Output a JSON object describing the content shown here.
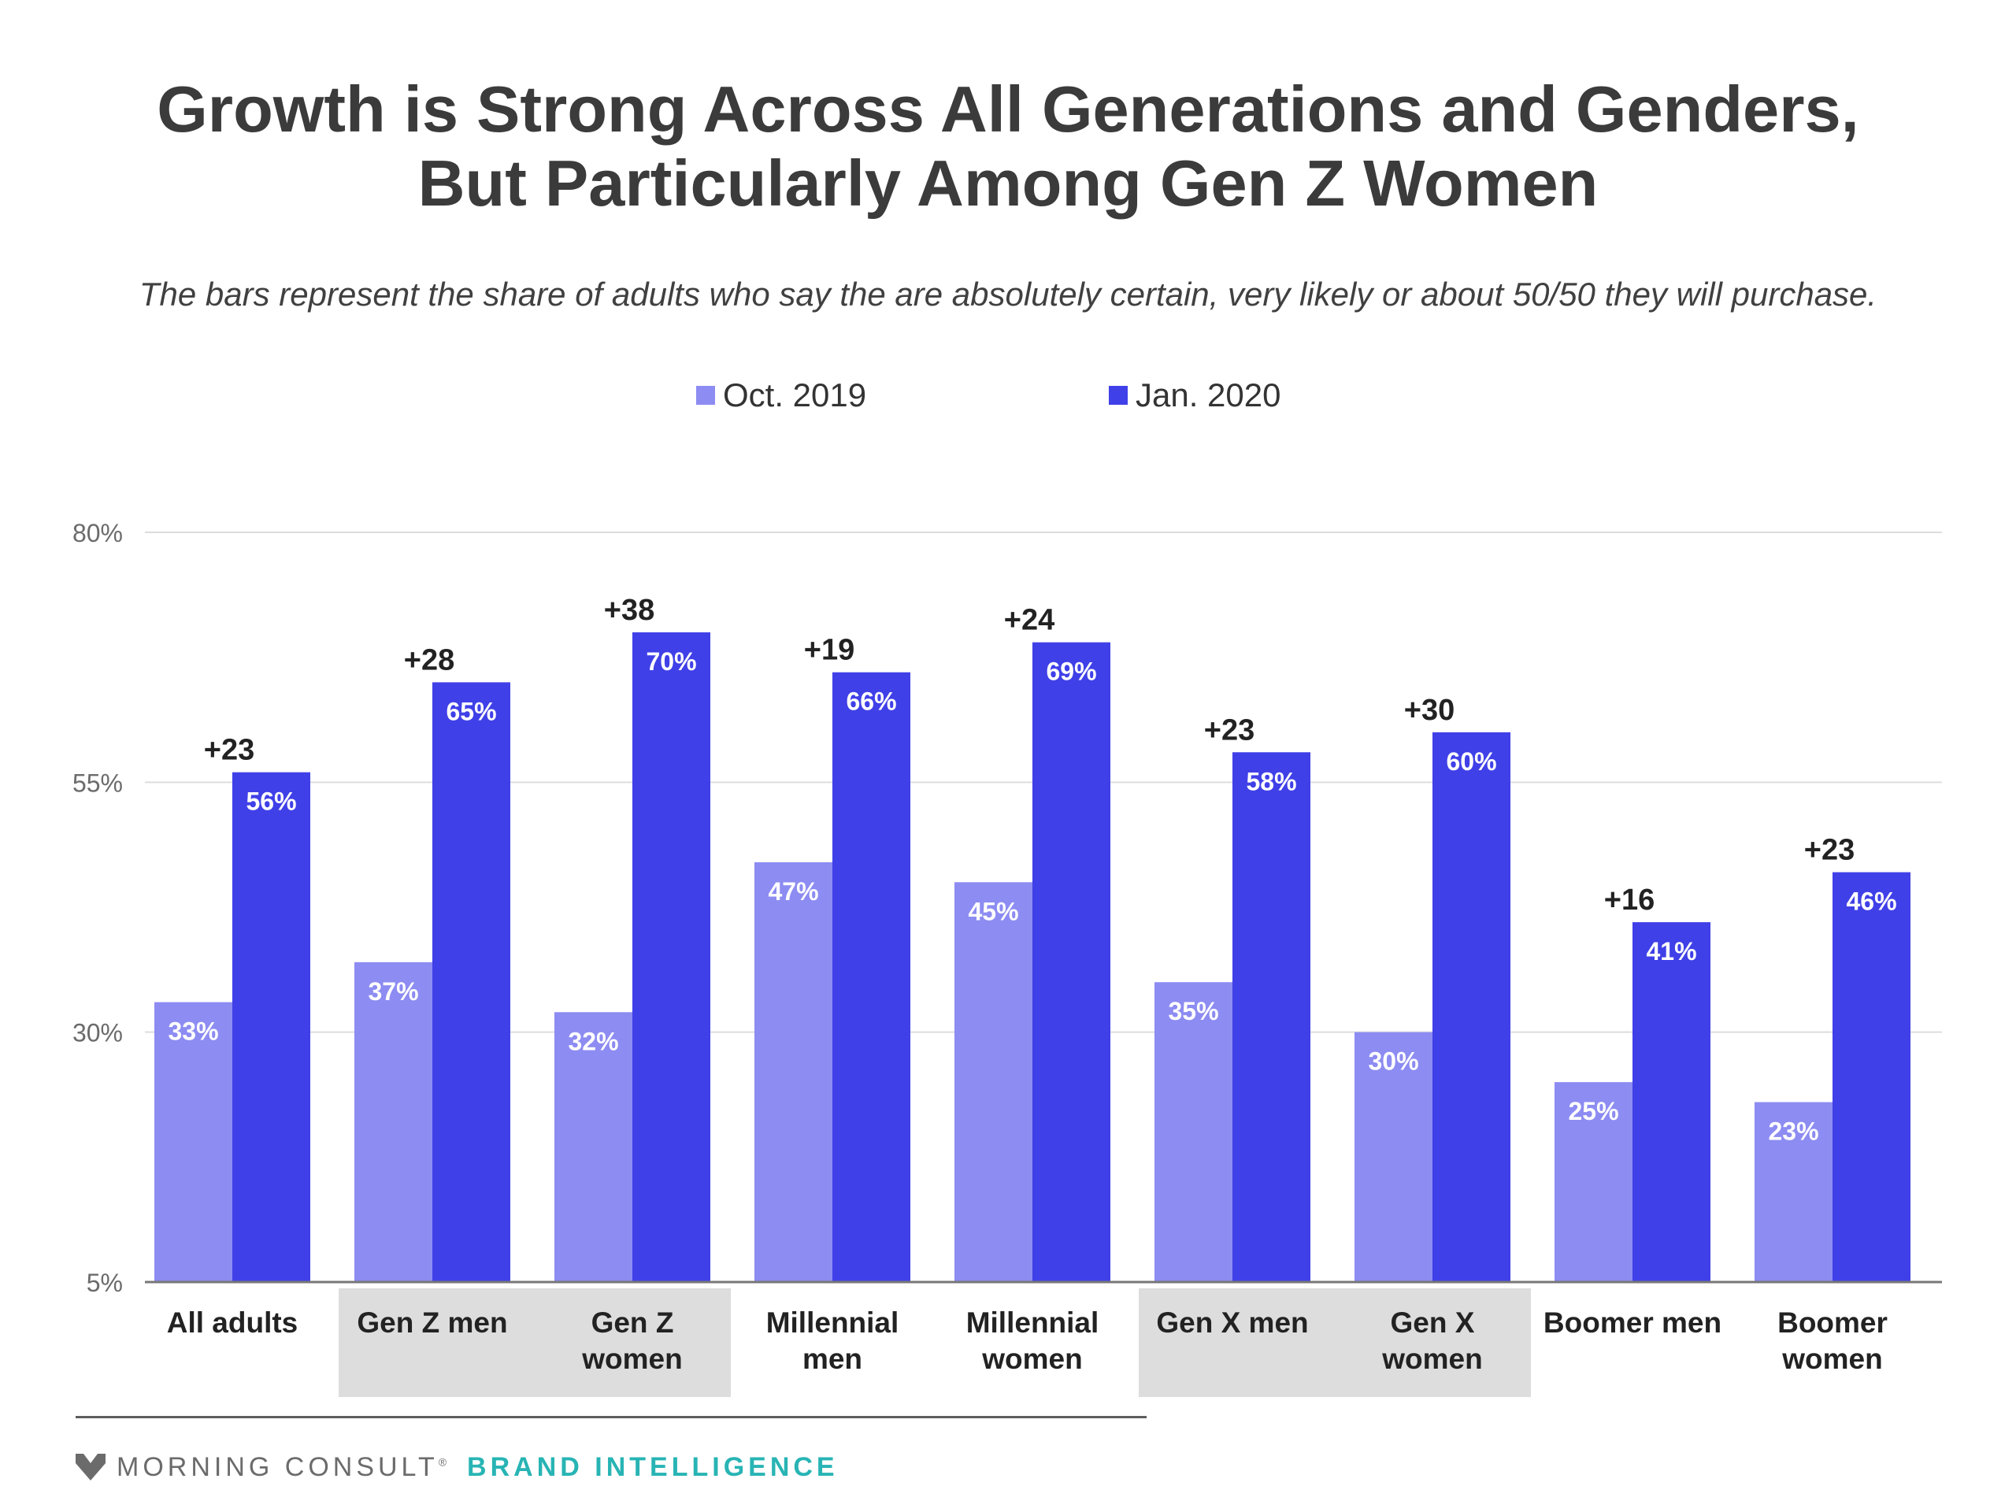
{
  "title_line1": "Growth is Strong Across All Generations and Genders,",
  "title_line2": "But Particularly Among Gen Z Women",
  "subtitle": "The bars represent the share of adults who say the are absolutely certain, very likely or about 50/50 they will purchase.",
  "footer": {
    "brand": "MORNING CONSULT",
    "trademark": "®",
    "tagline": "BRAND INTELLIGENCE"
  },
  "colors": {
    "oct": "#8d8cf2",
    "jan": "#4040e8",
    "grid": "#dddddd",
    "highlight_band": "#dddddd",
    "tagline": "#28b4b4"
  },
  "chart_data": {
    "type": "bar",
    "categories": [
      [
        "All adults"
      ],
      [
        "Gen Z men"
      ],
      [
        "Gen Z",
        "women"
      ],
      [
        "Millennial",
        "men"
      ],
      [
        "Millennial",
        "women"
      ],
      [
        "Gen X men"
      ],
      [
        "Gen X",
        "women"
      ],
      [
        "Boomer men"
      ],
      [
        "Boomer",
        "women"
      ]
    ],
    "highlighted_categories": [
      1,
      2,
      5,
      6
    ],
    "series": [
      {
        "name": "Oct. 2019",
        "values": [
          33,
          37,
          32,
          47,
          45,
          35,
          30,
          25,
          23
        ]
      },
      {
        "name": "Jan. 2020",
        "values": [
          56,
          65,
          70,
          66,
          69,
          58,
          60,
          41,
          46
        ]
      }
    ],
    "value_labels": [
      [
        "33%",
        "37%",
        "32%",
        "47%",
        "45%",
        "35%",
        "30%",
        "25%",
        "23%"
      ],
      [
        "56%",
        "65%",
        "70%",
        "66%",
        "69%",
        "58%",
        "60%",
        "41%",
        "46%"
      ]
    ],
    "change_labels": [
      "+23",
      "+28",
      "+38",
      "+19",
      "+24",
      "+23",
      "+30",
      "+16",
      "+23"
    ],
    "y_ticks": [
      5,
      30,
      55,
      80
    ],
    "y_tick_labels": [
      "5%",
      "30%",
      "55%",
      "80%"
    ],
    "ylim": [
      5,
      80
    ],
    "grid": true,
    "legend_position": "top-center"
  }
}
